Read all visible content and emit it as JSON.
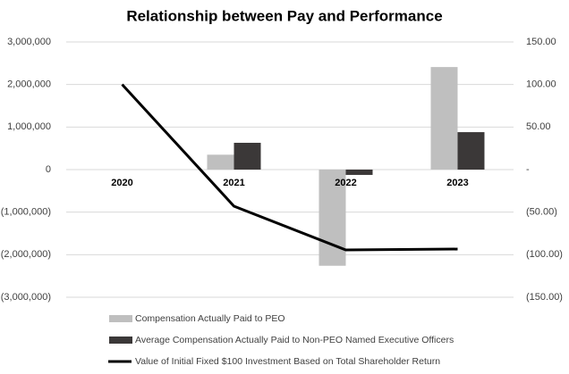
{
  "chart_data": {
    "type": "bar-line",
    "title": "Relationship between Pay and Performance",
    "categories": [
      "2020",
      "2021",
      "2022",
      "2023"
    ],
    "series": [
      {
        "name": "Compensation Actually Paid to PEO",
        "type": "bar",
        "color": "#bfbfbf",
        "values": [
          0,
          350000,
          -2260000,
          2410000
        ]
      },
      {
        "name": "Average Compensation Actually Paid to Non-PEO Named Executive Officers",
        "type": "bar",
        "color": "#3b3838",
        "values": [
          0,
          630000,
          -125000,
          880000
        ]
      },
      {
        "name": "Value of Initial Fixed $100 Investment Based on Total Shareholder Return",
        "type": "line",
        "axis": "y2",
        "color": "#000000",
        "values": [
          100,
          -43,
          -94.4,
          -93.4
        ]
      }
    ],
    "ylim": [
      -3000000,
      3000000
    ],
    "yticks": [
      {
        "value": -3000000,
        "label": "(3,000,000)"
      },
      {
        "value": -2000000,
        "label": "(2,000,000)"
      },
      {
        "value": -1000000,
        "label": "(1,000,000)"
      },
      0,
      {
        "value": 1000000,
        "label": "1,000,000"
      },
      {
        "value": 2000000,
        "label": "2,000,000"
      },
      {
        "value": 3000000,
        "label": "3,000,000"
      }
    ],
    "y2lim": [
      -150,
      150
    ],
    "y2ticks": [
      {
        "value": -150,
        "label": "(150.00)"
      },
      {
        "value": -100,
        "label": "(100.00)"
      },
      {
        "value": -50,
        "label": "(50.00)"
      },
      {
        "value": 0,
        "label": "-"
      },
      {
        "value": 50,
        "label": "50.00"
      },
      {
        "value": 100,
        "label": "100.00"
      },
      {
        "value": 150,
        "label": "150.00"
      }
    ],
    "grid": true,
    "legend": "bottom"
  }
}
